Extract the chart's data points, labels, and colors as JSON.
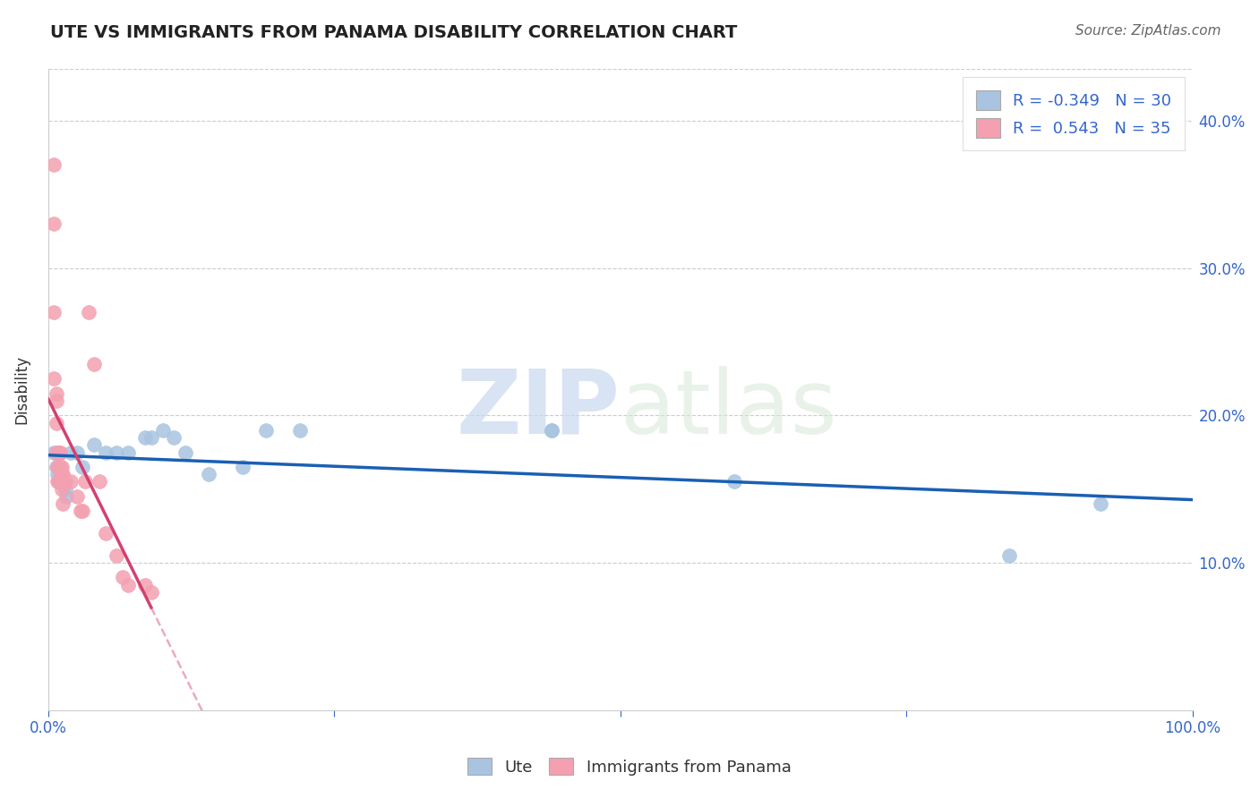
{
  "title": "UTE VS IMMIGRANTS FROM PANAMA DISABILITY CORRELATION CHART",
  "source": "Source: ZipAtlas.com",
  "ylabel": "Disability",
  "legend_label_1": "Ute",
  "legend_label_2": "Immigrants from Panama",
  "r1": -0.349,
  "n1": 30,
  "r2": 0.543,
  "n2": 35,
  "color_ute": "#a8c4e0",
  "color_panama": "#f4a0b0",
  "line_color_ute": "#1a5fb4",
  "line_color_panama": "#d44070",
  "watermark_zip": "ZIP",
  "watermark_atlas": "atlas",
  "xlim": [
    0.0,
    1.0
  ],
  "ylim": [
    0.0,
    0.435
  ],
  "xticks": [
    0.0,
    0.25,
    0.5,
    0.75,
    1.0
  ],
  "xticklabels": [
    "0.0%",
    "",
    "",
    "",
    "100.0%"
  ],
  "yticks": [
    0.1,
    0.2,
    0.3,
    0.4
  ],
  "yticklabels": [
    "10.0%",
    "20.0%",
    "30.0%",
    "40.0%"
  ],
  "ute_x": [
    0.005,
    0.007,
    0.008,
    0.009,
    0.01,
    0.012,
    0.013,
    0.015,
    0.016,
    0.02,
    0.025,
    0.03,
    0.04,
    0.05,
    0.06,
    0.07,
    0.085,
    0.09,
    0.1,
    0.11,
    0.12,
    0.14,
    0.17,
    0.19,
    0.22,
    0.44,
    0.44,
    0.6,
    0.84,
    0.92
  ],
  "ute_y": [
    0.175,
    0.165,
    0.16,
    0.155,
    0.16,
    0.155,
    0.155,
    0.15,
    0.145,
    0.175,
    0.175,
    0.165,
    0.18,
    0.175,
    0.175,
    0.175,
    0.185,
    0.185,
    0.19,
    0.185,
    0.175,
    0.16,
    0.165,
    0.19,
    0.19,
    0.19,
    0.19,
    0.155,
    0.105,
    0.14
  ],
  "panama_x": [
    0.005,
    0.005,
    0.005,
    0.005,
    0.007,
    0.007,
    0.007,
    0.007,
    0.008,
    0.008,
    0.008,
    0.01,
    0.01,
    0.01,
    0.01,
    0.012,
    0.012,
    0.012,
    0.013,
    0.013,
    0.015,
    0.02,
    0.025,
    0.028,
    0.03,
    0.032,
    0.035,
    0.04,
    0.045,
    0.05,
    0.06,
    0.065,
    0.07,
    0.085,
    0.09
  ],
  "panama_y": [
    0.37,
    0.33,
    0.27,
    0.225,
    0.215,
    0.21,
    0.195,
    0.175,
    0.175,
    0.165,
    0.155,
    0.175,
    0.175,
    0.165,
    0.155,
    0.165,
    0.16,
    0.15,
    0.16,
    0.14,
    0.155,
    0.155,
    0.145,
    0.135,
    0.135,
    0.155,
    0.27,
    0.235,
    0.155,
    0.12,
    0.105,
    0.09,
    0.085,
    0.085,
    0.08
  ],
  "title_fontsize": 14,
  "source_fontsize": 11,
  "tick_fontsize": 12,
  "ylabel_fontsize": 12,
  "legend_fontsize": 13
}
